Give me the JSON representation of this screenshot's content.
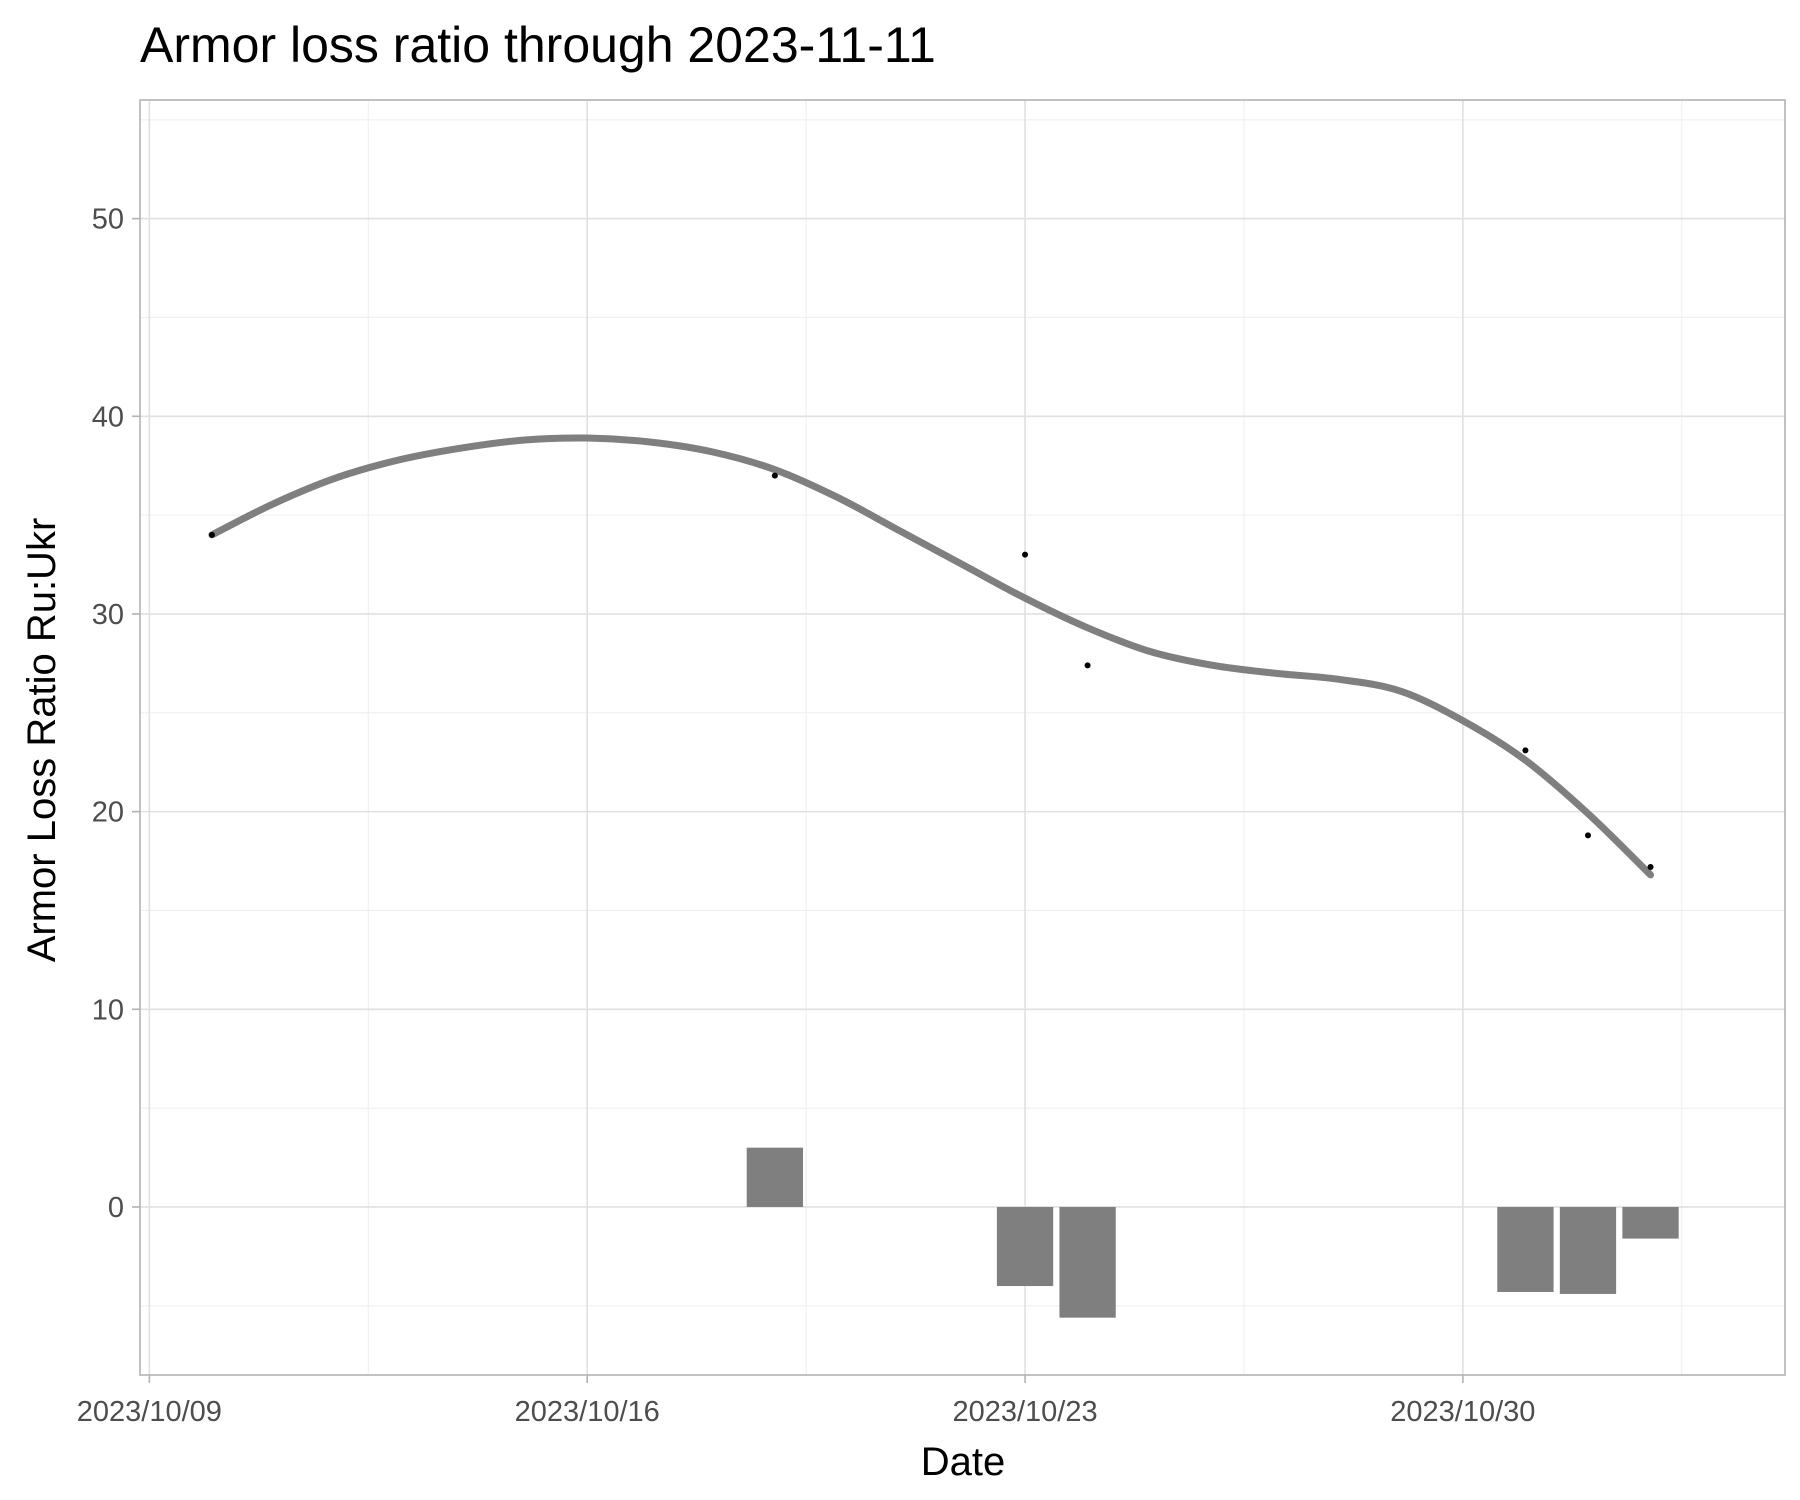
{
  "chart_data": {
    "type": "line",
    "title": "Armor loss ratio through 2023-11-11",
    "xlabel": "Date",
    "ylabel": "Armor Loss Ratio Ru:Ukr",
    "xlim": [
      "2023-10-09",
      "2023-11-04"
    ],
    "ylim": [
      -8.5,
      56
    ],
    "x_ticks": [
      {
        "date": "2023-10-09",
        "label": "2023/10/09"
      },
      {
        "date": "2023-10-16",
        "label": "2023/10/16"
      },
      {
        "date": "2023-10-23",
        "label": "2023/10/23"
      },
      {
        "date": "2023-10-30",
        "label": "2023/10/30"
      }
    ],
    "y_ticks": [
      0,
      10,
      20,
      30,
      40,
      50
    ],
    "grid": true,
    "legend": "none",
    "points": [
      {
        "date": "2023-10-10",
        "value": 34.0
      },
      {
        "date": "2023-10-19",
        "value": 37.0
      },
      {
        "date": "2023-10-23",
        "value": 33.0
      },
      {
        "date": "2023-10-24",
        "value": 27.4
      },
      {
        "date": "2023-10-31",
        "value": 23.1
      },
      {
        "date": "2023-11-01",
        "value": 18.8
      },
      {
        "date": "2023-11-02",
        "value": 17.2
      }
    ],
    "smooth": [
      {
        "date": "2023-10-10",
        "value": 34.0
      },
      {
        "date": "2023-10-11",
        "value": 35.6
      },
      {
        "date": "2023-10-12",
        "value": 36.9
      },
      {
        "date": "2023-10-13",
        "value": 37.8
      },
      {
        "date": "2023-10-14",
        "value": 38.4
      },
      {
        "date": "2023-10-15",
        "value": 38.8
      },
      {
        "date": "2023-10-16",
        "value": 38.9
      },
      {
        "date": "2023-10-17",
        "value": 38.7
      },
      {
        "date": "2023-10-18",
        "value": 38.2
      },
      {
        "date": "2023-10-19",
        "value": 37.3
      },
      {
        "date": "2023-10-20",
        "value": 35.9
      },
      {
        "date": "2023-10-21",
        "value": 34.2
      },
      {
        "date": "2023-10-22",
        "value": 32.5
      },
      {
        "date": "2023-10-23",
        "value": 30.8
      },
      {
        "date": "2023-10-24",
        "value": 29.3
      },
      {
        "date": "2023-10-25",
        "value": 28.1
      },
      {
        "date": "2023-10-26",
        "value": 27.4
      },
      {
        "date": "2023-10-27",
        "value": 27.0
      },
      {
        "date": "2023-10-28",
        "value": 26.7
      },
      {
        "date": "2023-10-29",
        "value": 26.1
      },
      {
        "date": "2023-10-30",
        "value": 24.6
      },
      {
        "date": "2023-10-31",
        "value": 22.6
      },
      {
        "date": "2023-11-01",
        "value": 19.9
      },
      {
        "date": "2023-11-02",
        "value": 16.8
      }
    ],
    "bars": [
      {
        "date": "2023-10-19",
        "value": 3.0
      },
      {
        "date": "2023-10-23",
        "value": -4.0
      },
      {
        "date": "2023-10-24",
        "value": -5.6
      },
      {
        "date": "2023-10-31",
        "value": -4.3
      },
      {
        "date": "2023-11-01",
        "value": -4.4
      },
      {
        "date": "2023-11-02",
        "value": -1.6
      }
    ]
  }
}
